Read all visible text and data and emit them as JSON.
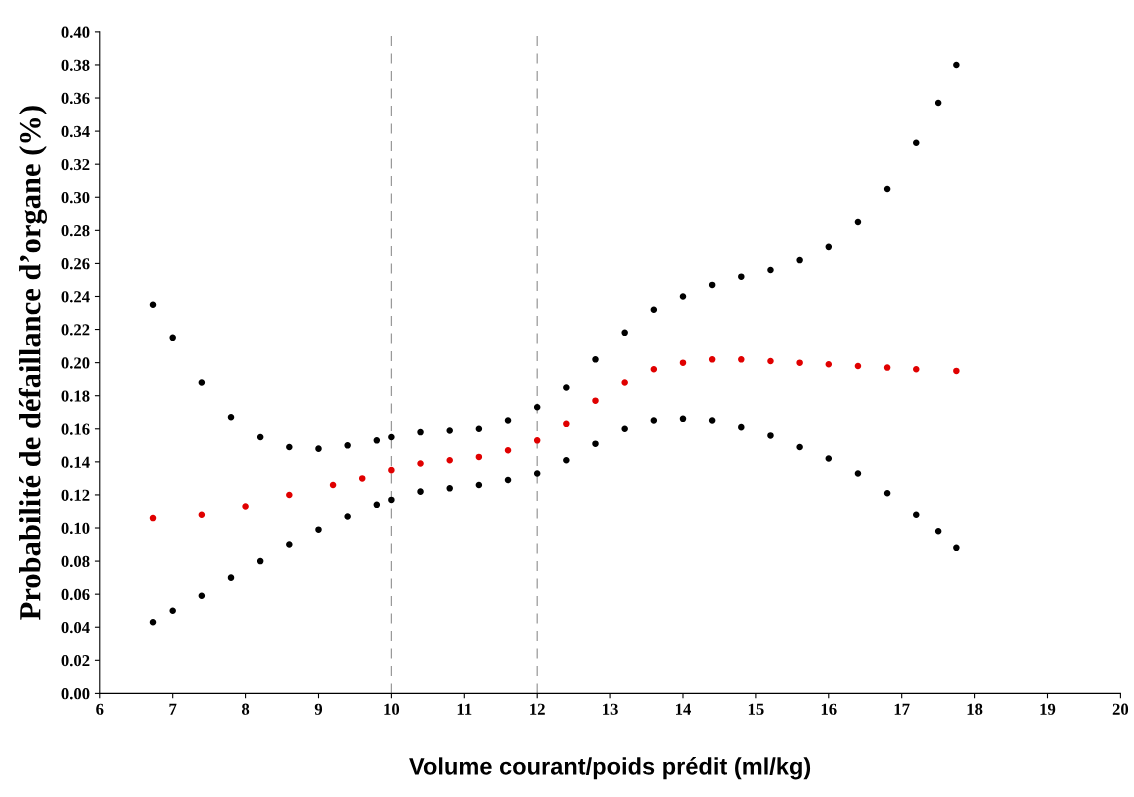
{
  "chart_data": {
    "type": "scatter",
    "xlabel": "Volume courant/poids prédit (ml/kg)",
    "ylabel": "Probabilité de défaillance d’organe (%)",
    "marker": "circle",
    "grid": false,
    "xlim": [
      6,
      20
    ],
    "xticks": [
      6,
      7,
      8,
      9,
      10,
      11,
      12,
      13,
      14,
      15,
      16,
      17,
      18,
      19,
      20
    ],
    "ylim": [
      0,
      0.4
    ],
    "yticks": [
      {
        "value": 0,
        "label": "0.00"
      },
      {
        "value": 0.02,
        "label": "0.02"
      },
      {
        "value": 0.04,
        "label": "0.04"
      },
      {
        "value": 0.06,
        "label": "0.06"
      },
      {
        "value": 0.08,
        "label": "0.08"
      },
      {
        "value": 0.1,
        "label": "0.10"
      },
      {
        "value": 0.12,
        "label": "0.12"
      },
      {
        "value": 0.14,
        "label": "0.14"
      },
      {
        "value": 0.16,
        "label": "0.16"
      },
      {
        "value": 0.18,
        "label": "0.18"
      },
      {
        "value": 0.2,
        "label": "0.20"
      },
      {
        "value": 0.22,
        "label": "0.22"
      },
      {
        "value": 0.24,
        "label": "0.24"
      },
      {
        "value": 0.26,
        "label": "0.26"
      },
      {
        "value": 0.28,
        "label": "0.28"
      },
      {
        "value": 0.3,
        "label": "0.30"
      },
      {
        "value": 0.32,
        "label": "0.32"
      },
      {
        "value": 0.34,
        "label": "0.34"
      },
      {
        "value": 0.36,
        "label": "0.36"
      },
      {
        "value": 0.38,
        "label": "0.38"
      },
      {
        "value": 0.4,
        "label": "0.40"
      }
    ],
    "ref_lines": [
      {
        "axis": "x",
        "value": 10,
        "color": "#999999",
        "line_style": "dashed"
      },
      {
        "axis": "x",
        "value": 12,
        "color": "#999999",
        "line_style": "dashed"
      }
    ],
    "series": [
      {
        "color": "#000000",
        "x": [
          6.73,
          7.0,
          7.4,
          7.8,
          8.2,
          8.6,
          9.0,
          9.4,
          9.8,
          10.0,
          10.4,
          10.8,
          11.2,
          11.6,
          12.0,
          12.4,
          12.8,
          13.2,
          13.6,
          14.0,
          14.4,
          14.8,
          15.2,
          15.6,
          16.0,
          16.4,
          16.8,
          17.2,
          17.5,
          17.75
        ],
        "values": [
          0.235,
          0.215,
          0.188,
          0.167,
          0.155,
          0.149,
          0.148,
          0.15,
          0.153,
          0.155,
          0.158,
          0.159,
          0.16,
          0.165,
          0.173,
          0.185,
          0.202,
          0.218,
          0.232,
          0.24,
          0.247,
          0.252,
          0.256,
          0.262,
          0.27,
          0.285,
          0.305,
          0.333,
          0.357,
          0.38
        ]
      },
      {
        "color": "#e00000",
        "x": [
          6.73,
          7.4,
          8.0,
          8.6,
          9.2,
          9.6,
          10.0,
          10.4,
          10.8,
          11.2,
          11.6,
          12.0,
          12.4,
          12.8,
          13.2,
          13.6,
          14.0,
          14.4,
          14.8,
          15.2,
          15.6,
          16.0,
          16.4,
          16.8,
          17.2,
          17.75
        ],
        "values": [
          0.106,
          0.108,
          0.113,
          0.12,
          0.126,
          0.13,
          0.135,
          0.139,
          0.141,
          0.143,
          0.147,
          0.153,
          0.163,
          0.177,
          0.188,
          0.196,
          0.2,
          0.202,
          0.202,
          0.201,
          0.2,
          0.199,
          0.198,
          0.197,
          0.196,
          0.195
        ]
      },
      {
        "color": "#000000",
        "x": [
          6.73,
          7.0,
          7.4,
          7.8,
          8.2,
          8.6,
          9.0,
          9.4,
          9.8,
          10.0,
          10.4,
          10.8,
          11.2,
          11.6,
          12.0,
          12.4,
          12.8,
          13.2,
          13.6,
          14.0,
          14.4,
          14.8,
          15.2,
          15.6,
          16.0,
          16.4,
          16.8,
          17.2,
          17.5,
          17.75
        ],
        "values": [
          0.043,
          0.05,
          0.059,
          0.07,
          0.08,
          0.09,
          0.099,
          0.107,
          0.114,
          0.117,
          0.122,
          0.124,
          0.126,
          0.129,
          0.133,
          0.141,
          0.151,
          0.16,
          0.165,
          0.166,
          0.165,
          0.161,
          0.156,
          0.149,
          0.142,
          0.133,
          0.121,
          0.108,
          0.098,
          0.088
        ]
      }
    ]
  }
}
